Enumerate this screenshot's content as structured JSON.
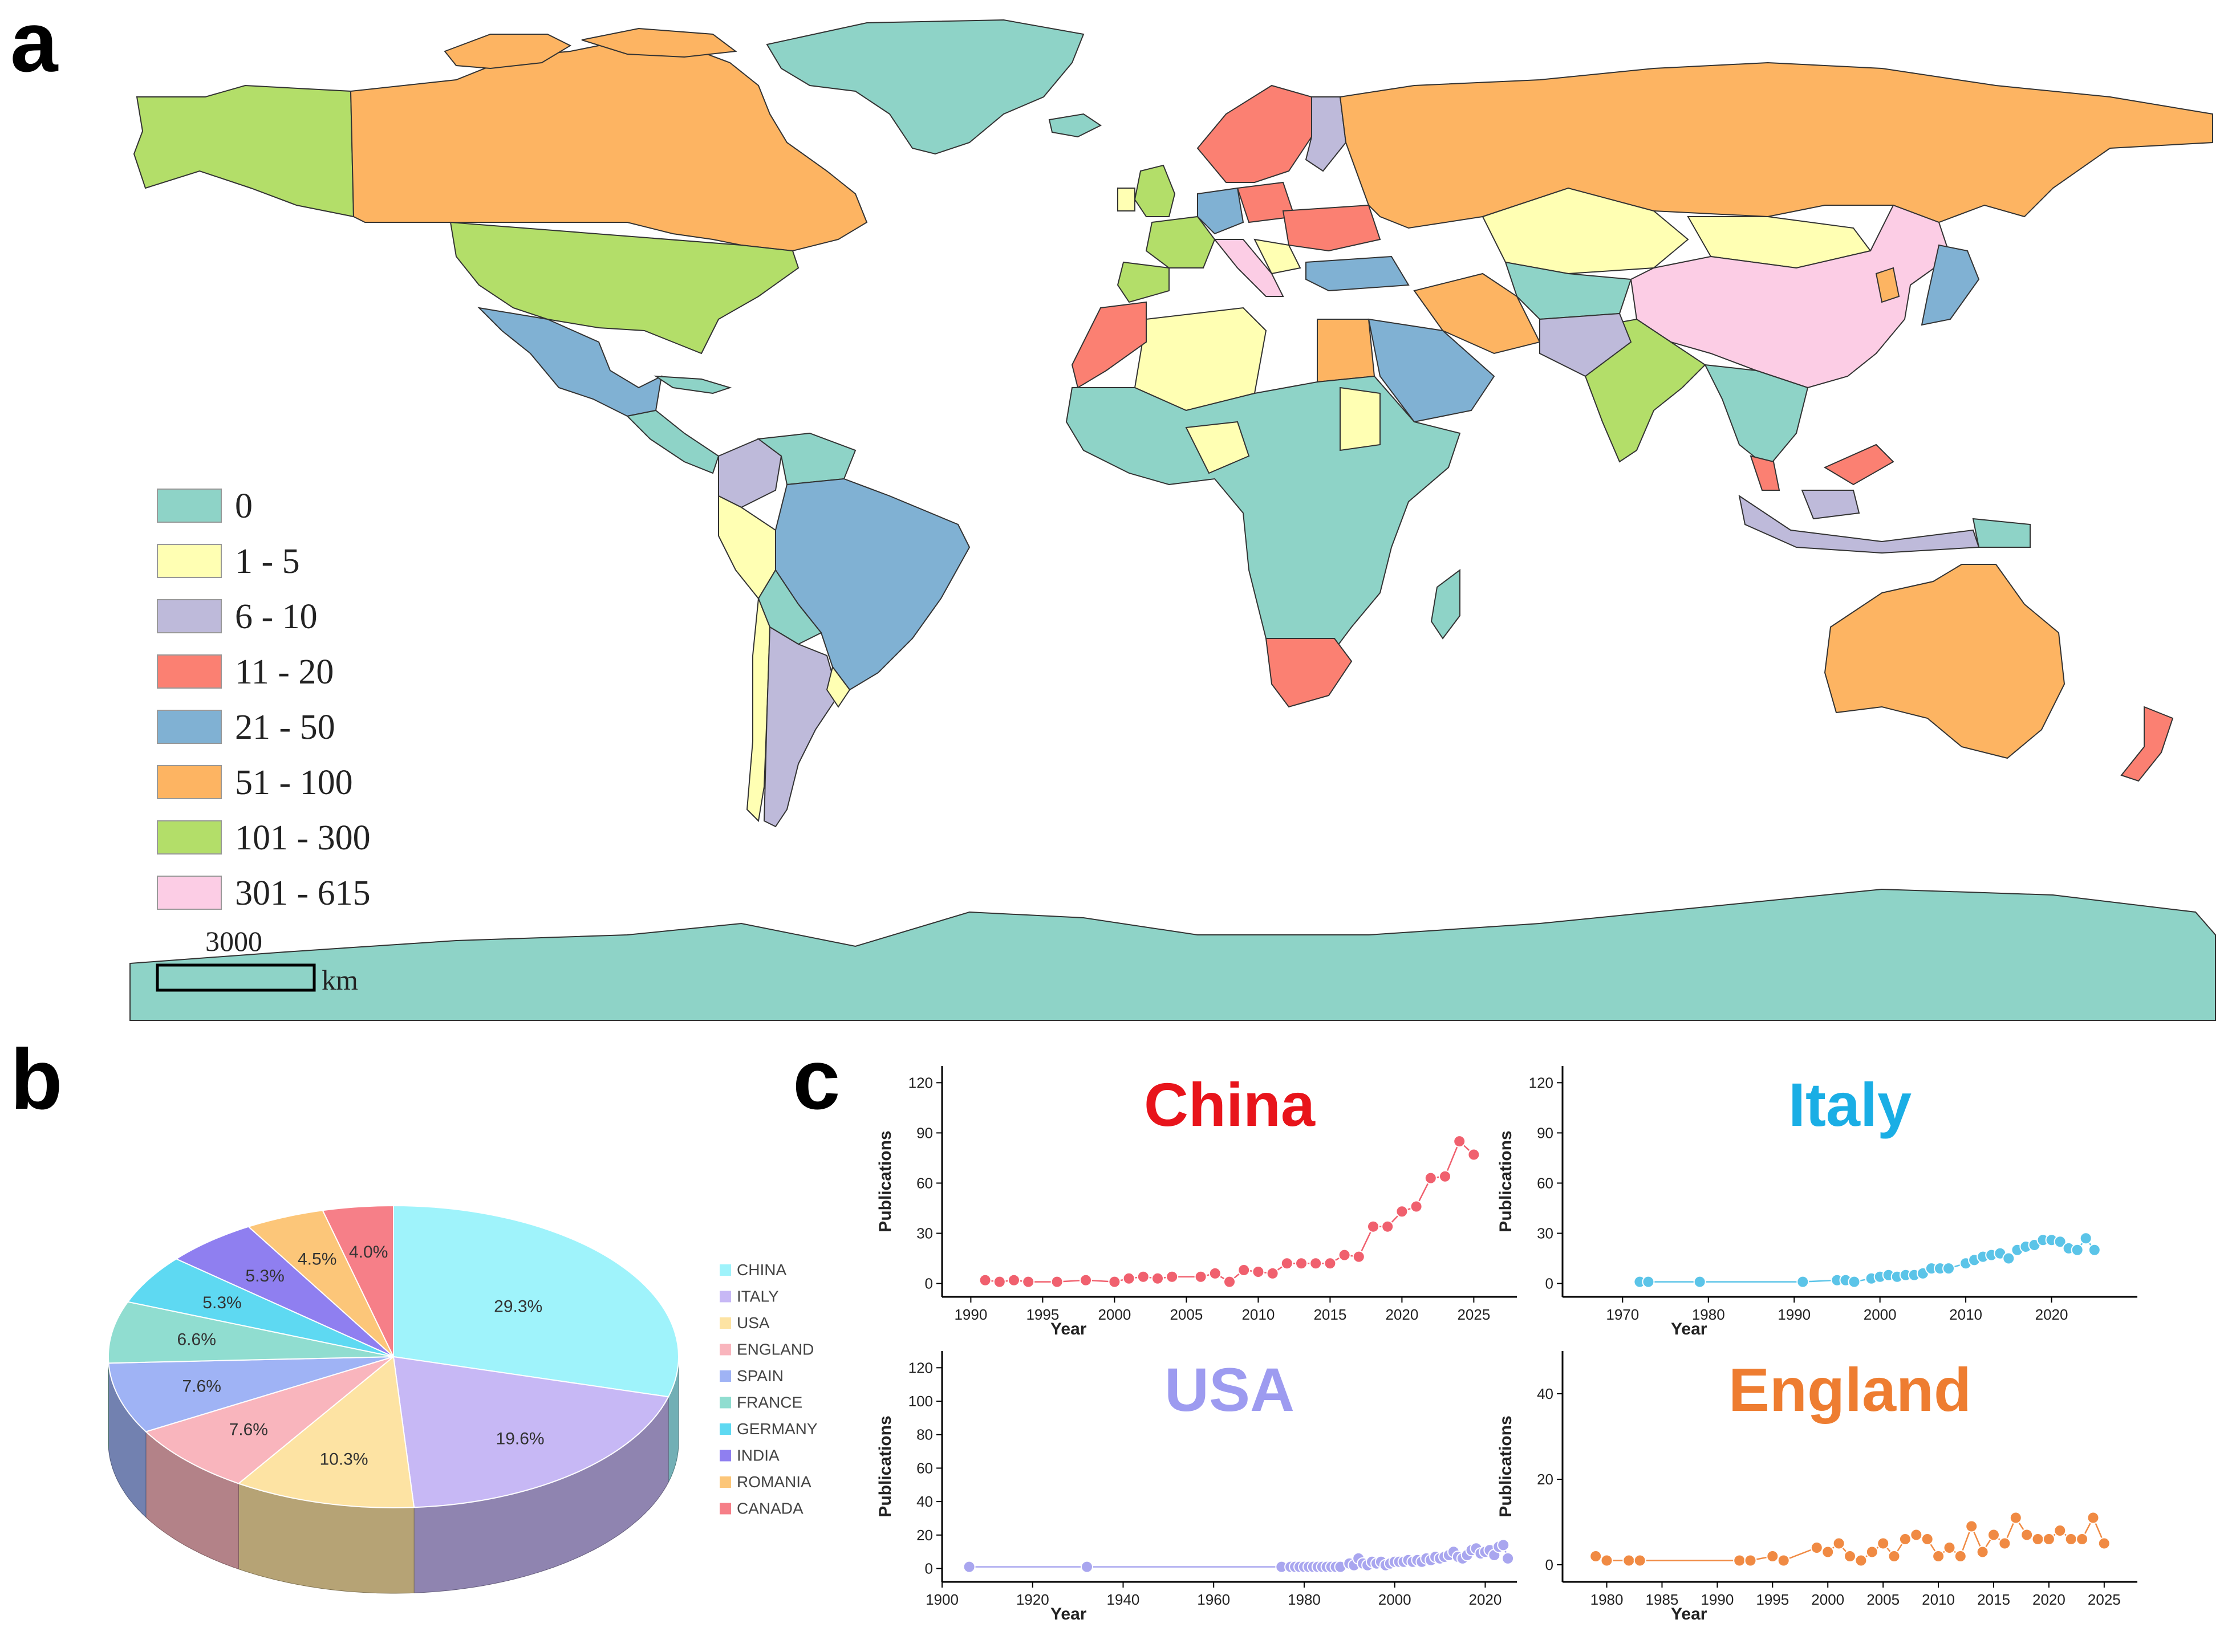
{
  "panels": {
    "a": "a",
    "b": "b",
    "c": "c"
  },
  "map": {
    "legend": [
      {
        "label": "0",
        "color": "#8ed3c7"
      },
      {
        "label": "1 - 5",
        "color": "#ffffb3"
      },
      {
        "label": "6 - 10",
        "color": "#bebada"
      },
      {
        "label": "11 - 20",
        "color": "#fb8072"
      },
      {
        "label": "21 - 50",
        "color": "#80b1d3"
      },
      {
        "label": "51 - 100",
        "color": "#fdb462"
      },
      {
        "label": "101 - 300",
        "color": "#b3de69"
      },
      {
        "label": "301 - 615",
        "color": "#fccde5"
      }
    ],
    "scale_value": "3000",
    "scale_unit": "km"
  },
  "chart_data": [
    {
      "type": "pie",
      "variant": "3d",
      "categories": [
        "CHINA",
        "ITALY",
        "USA",
        "ENGLAND",
        "SPAIN",
        "FRANCE",
        "GERMANY",
        "INDIA",
        "ROMANIA",
        "CANADA"
      ],
      "values": [
        29.3,
        19.6,
        10.3,
        7.6,
        7.6,
        6.6,
        5.3,
        5.3,
        4.5,
        4.0
      ],
      "labels": [
        "29.3%",
        "19.6%",
        "10.3%",
        "7.6%",
        "7.6%",
        "6.6%",
        "5.3%",
        "5.3%",
        "4.5%",
        "4.0%"
      ],
      "colors": [
        "#9ff3fb",
        "#c7b8f5",
        "#fde3a3",
        "#f9b5bd",
        "#9fb3f5",
        "#90ddd0",
        "#5ed9f2",
        "#8f7ff0",
        "#fcc679",
        "#f67f88"
      ],
      "legend_position": "right"
    },
    {
      "type": "line",
      "title": "China",
      "title_color": "#e8141b",
      "color": "#f0606e",
      "xlabel": "Year",
      "ylabel": "Publications",
      "xlim": [
        1988,
        2028
      ],
      "ylim": [
        -8,
        130
      ],
      "xticks": [
        1990,
        1995,
        2000,
        2005,
        2010,
        2015,
        2020,
        2025
      ],
      "yticks": [
        0,
        30,
        60,
        90,
        120
      ],
      "x": [
        1991,
        1992,
        1993,
        1994,
        1996,
        1998,
        2000,
        2001,
        2002,
        2003,
        2004,
        2006,
        2007,
        2008,
        2009,
        2010,
        2011,
        2012,
        2013,
        2014,
        2015,
        2016,
        2017,
        2018,
        2019,
        2020,
        2021,
        2022,
        2023,
        2024,
        2025
      ],
      "y": [
        2,
        1,
        2,
        1,
        1,
        2,
        1,
        3,
        4,
        3,
        4,
        4,
        6,
        1,
        8,
        7,
        6,
        12,
        12,
        12,
        12,
        17,
        16,
        34,
        34,
        43,
        46,
        63,
        64,
        85,
        77
      ]
    },
    {
      "type": "line",
      "title": "Italy",
      "title_color": "#1aaee5",
      "color": "#5bc4e8",
      "xlabel": "Year",
      "ylabel": "Publications",
      "xlim": [
        1963,
        2030
      ],
      "ylim": [
        -8,
        130
      ],
      "xticks": [
        1970,
        1980,
        1990,
        2000,
        2010,
        2020
      ],
      "yticks": [
        0,
        30,
        60,
        90,
        120
      ],
      "x": [
        1972,
        1973,
        1979,
        1991,
        1995,
        1996,
        1997,
        1999,
        2000,
        2001,
        2002,
        2003,
        2004,
        2005,
        2006,
        2007,
        2008,
        2010,
        2011,
        2012,
        2013,
        2014,
        2015,
        2016,
        2017,
        2018,
        2019,
        2020,
        2021,
        2022,
        2023,
        2024,
        2025
      ],
      "y": [
        1,
        1,
        1,
        1,
        2,
        2,
        1,
        3,
        4,
        5,
        4,
        5,
        5,
        6,
        9,
        9,
        9,
        12,
        14,
        16,
        17,
        18,
        15,
        20,
        22,
        23,
        26,
        26,
        25,
        21,
        20,
        27,
        20
      ]
    },
    {
      "type": "line",
      "title": "USA",
      "title_color": "#9d9bf0",
      "color": "#a9a6ef",
      "xlabel": "Year",
      "ylabel": "Publications",
      "xlim": [
        1900,
        2027
      ],
      "ylim": [
        -8,
        130
      ],
      "xticks": [
        1900,
        1920,
        1940,
        1960,
        1980,
        2000,
        2020
      ],
      "yticks": [
        0,
        20,
        40,
        60,
        80,
        100,
        120
      ],
      "x": [
        1906,
        1932,
        1975,
        1977,
        1978,
        1979,
        1980,
        1981,
        1982,
        1983,
        1984,
        1985,
        1986,
        1987,
        1988,
        1990,
        1991,
        1992,
        1993,
        1994,
        1995,
        1996,
        1997,
        1998,
        1999,
        2000,
        2001,
        2002,
        2003,
        2004,
        2005,
        2006,
        2007,
        2008,
        2009,
        2010,
        2011,
        2012,
        2013,
        2014,
        2015,
        2016,
        2017,
        2018,
        2019,
        2020,
        2021,
        2022,
        2023,
        2024,
        2025
      ],
      "y": [
        1,
        1,
        1,
        1,
        1,
        1,
        1,
        1,
        1,
        1,
        1,
        1,
        1,
        1,
        1,
        3,
        2,
        6,
        3,
        2,
        4,
        3,
        4,
        2,
        3,
        4,
        4,
        4,
        5,
        4,
        5,
        4,
        6,
        5,
        7,
        6,
        7,
        8,
        10,
        7,
        6,
        8,
        11,
        12,
        9,
        10,
        11,
        8,
        13,
        14,
        6
      ]
    },
    {
      "type": "line",
      "title": "England",
      "title_color": "#ee7d31",
      "color": "#f08a43",
      "xlabel": "Year",
      "ylabel": "Publications",
      "xlim": [
        1976,
        2028
      ],
      "ylim": [
        -4,
        50
      ],
      "xticks": [
        1980,
        1985,
        1990,
        1995,
        2000,
        2005,
        2010,
        2015,
        2020,
        2025
      ],
      "yticks": [
        0,
        20,
        40
      ],
      "x": [
        1979,
        1980,
        1982,
        1983,
        1992,
        1993,
        1995,
        1996,
        1999,
        2000,
        2001,
        2002,
        2003,
        2004,
        2005,
        2006,
        2007,
        2008,
        2009,
        2010,
        2011,
        2012,
        2013,
        2014,
        2015,
        2016,
        2017,
        2018,
        2019,
        2020,
        2021,
        2022,
        2023,
        2024,
        2025
      ],
      "y": [
        2,
        1,
        1,
        1,
        1,
        1,
        2,
        1,
        4,
        3,
        5,
        2,
        1,
        3,
        5,
        2,
        6,
        7,
        6,
        2,
        4,
        2,
        9,
        3,
        7,
        5,
        11,
        7,
        6,
        6,
        8,
        6,
        6,
        11,
        5
      ]
    }
  ]
}
